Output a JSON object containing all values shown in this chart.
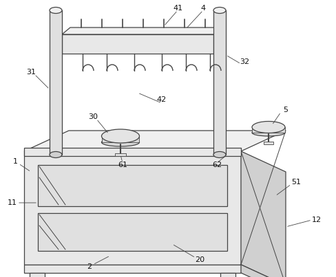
{
  "bg_color": "#ffffff",
  "line_color": "#444444",
  "fill_front": "#e8e8e8",
  "fill_side": "#d0d0d0",
  "fill_top": "#f0f0f0",
  "fill_shelf": "#e0e0e0",
  "fill_post": "#e0e0e0",
  "fill_bar": "#e8e8e8",
  "fill_tray": "#e8e8e8"
}
